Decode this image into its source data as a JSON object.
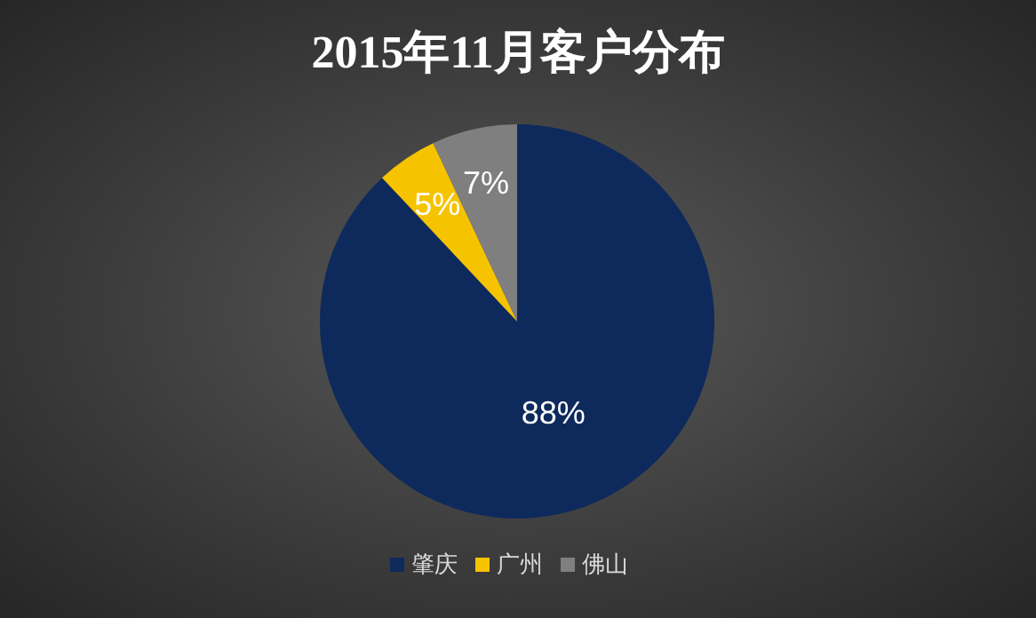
{
  "chart_data": {
    "type": "pie",
    "title": "2015年11月客户分布",
    "categories": [
      "肇庆",
      "广州",
      "佛山"
    ],
    "values": [
      88,
      5,
      7
    ],
    "value_labels": [
      "88%",
      "5%",
      "7%"
    ],
    "colors": [
      "#0e2a5c",
      "#f5c300",
      "#7f7f7f"
    ],
    "legend": "bottom"
  }
}
